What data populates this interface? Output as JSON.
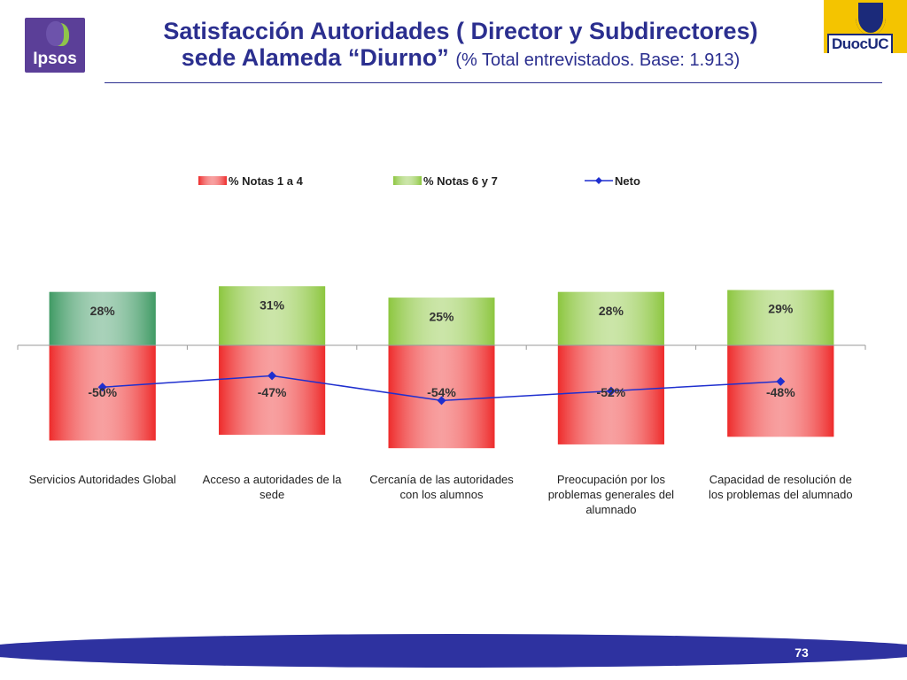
{
  "header": {
    "title_line1": "Satisfacción Autoridades ( Director y Subdirectores)",
    "title_line2": "sede Alameda “Diurno”",
    "base_note": "(% Total entrevistados. Base: 1.913)"
  },
  "logos": {
    "ipsos": "Ipsos",
    "duoc": "DuocUC"
  },
  "colors": {
    "negative": "#ee2b2b",
    "positive": "#8cc63f",
    "positive_first": "#3f9a64",
    "neto": "#1f2fcf",
    "title": "#2b2f8f"
  },
  "chart_data": {
    "type": "bar",
    "categories": [
      "Servicios Autoridades Global",
      "Acceso a autoridades de la sede",
      "Cercanía de las autoridades con los alumnos",
      "Preocupación por los problemas generales del alumnado",
      "Capacidad de resolución de los problemas del alumnado"
    ],
    "series": [
      {
        "name": "% Notas 1 a 4",
        "values": [
          -50,
          -47,
          -54,
          -52,
          -48
        ],
        "labels": [
          "-50%",
          "-47%",
          "-54%",
          "-52%",
          "-48%"
        ]
      },
      {
        "name": "% Notas 6 y 7",
        "values": [
          28,
          31,
          25,
          28,
          29
        ],
        "labels": [
          "28%",
          "31%",
          "25%",
          "28%",
          "29%"
        ]
      },
      {
        "name": "Neto",
        "type": "line",
        "values": [
          -22,
          -16,
          -29,
          -24,
          -19
        ]
      }
    ],
    "legend_position": "top",
    "stacked": true,
    "grid": false
  },
  "footer": {
    "page_number": "73"
  }
}
